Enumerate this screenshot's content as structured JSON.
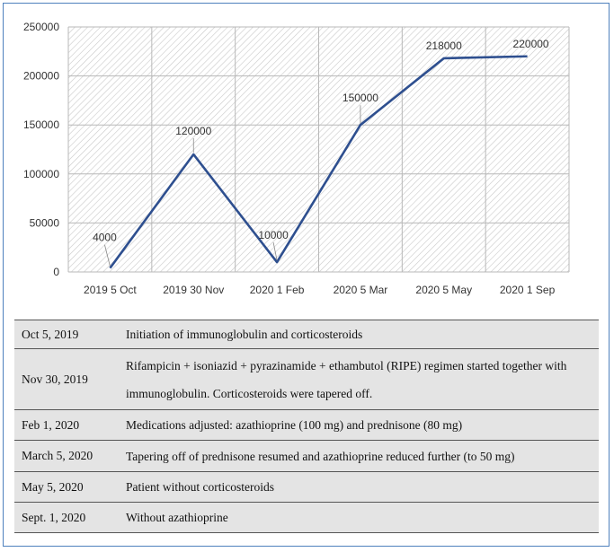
{
  "chart_data": {
    "type": "line",
    "categories": [
      "2019 5 Oct",
      "2019 30 Nov",
      "2020 1 Feb",
      "2020 5 Mar",
      "2020 5 May",
      "2020 1 Sep"
    ],
    "series": [
      {
        "values": [
          4000,
          120000,
          10000,
          150000,
          218000,
          220000
        ]
      }
    ],
    "data_labels": [
      "4000",
      "120000",
      "10000",
      "150000",
      "218000",
      "220000"
    ],
    "yticks": [
      "0",
      "50000",
      "100000",
      "150000",
      "200000",
      "250000"
    ],
    "ylim": [
      0,
      250000
    ],
    "grid": true,
    "line_color": "#2e4f8f"
  },
  "events": [
    {
      "date": "Oct 5, 2019",
      "text": "Initiation of immunoglobulin and corticosteroids"
    },
    {
      "date": "Nov 30, 2019",
      "text": "Rifampicin + isoniazid + pyrazinamide + ethambutol (RIPE) regimen started together with immunoglobulin. Corticosteroids were tapered off."
    },
    {
      "date": "Feb 1, 2020",
      "text": "Medications adjusted: azathioprine (100 mg) and prednisone (80 mg)"
    },
    {
      "date": "March 5, 2020",
      "text": "Tapering off of prednisone resumed and azathioprine reduced further (to 50 mg)"
    },
    {
      "date": "May 5, 2020",
      "text": "Patient without corticosteroids"
    },
    {
      "date": "Sept. 1, 2020",
      "text": "Without azathioprine"
    }
  ]
}
